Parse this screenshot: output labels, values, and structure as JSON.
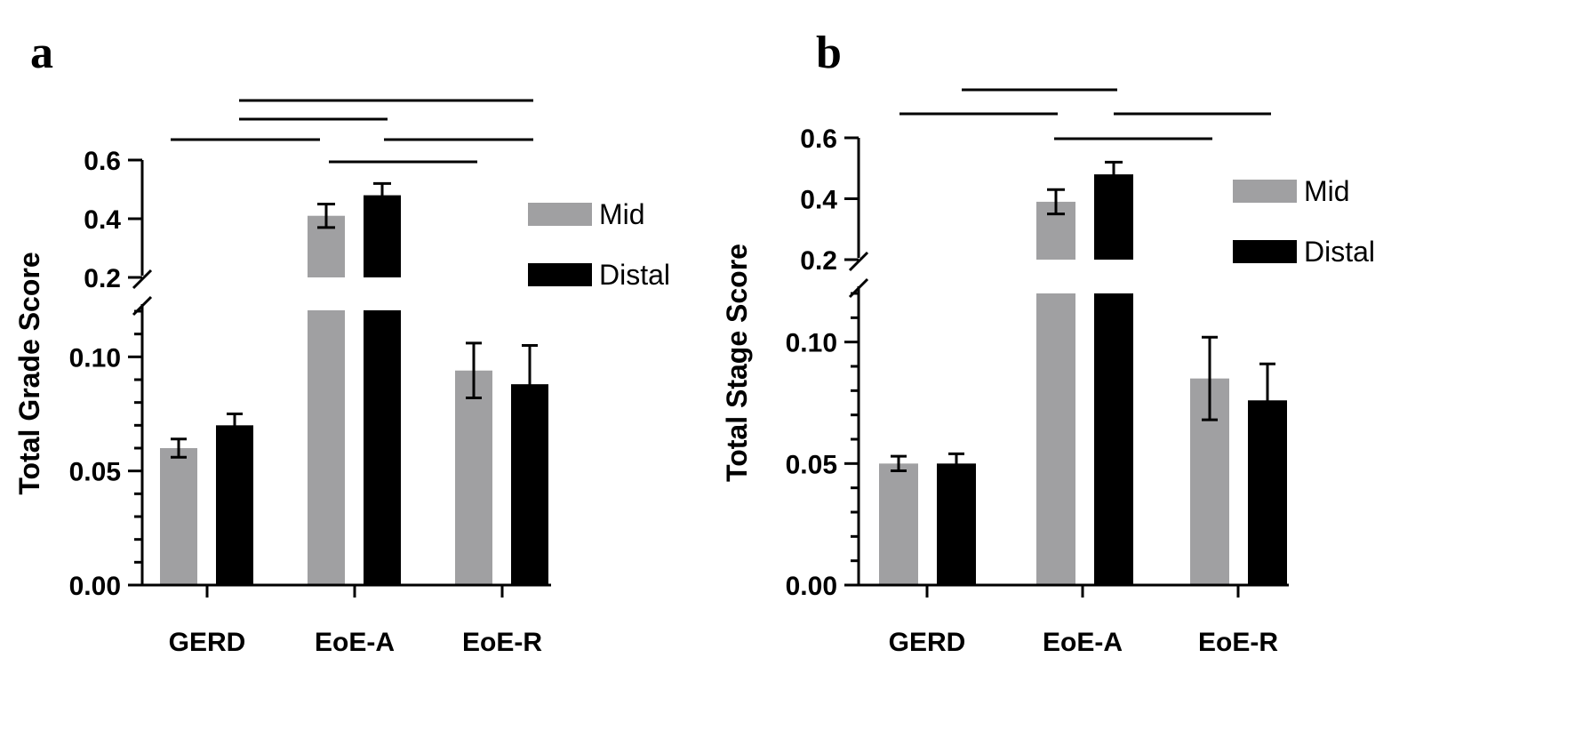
{
  "colors": {
    "mid": "#a0a0a2",
    "distal": "#000000"
  },
  "legend": [
    "Mid",
    "Distal"
  ],
  "chart_data": [
    {
      "panel": "a",
      "type": "bar",
      "ylabel": "Total Grade Score",
      "categories": [
        "GERD",
        "EoE-A",
        "EoE-R"
      ],
      "series": [
        {
          "name": "Mid",
          "values": [
            0.06,
            0.41,
            0.094
          ],
          "errors": [
            0.004,
            0.04,
            0.012
          ]
        },
        {
          "name": "Distal",
          "values": [
            0.07,
            0.48,
            0.088
          ],
          "errors": [
            0.005,
            0.04,
            0.017
          ]
        }
      ],
      "y_axis_lower": {
        "range": [
          0,
          0.12
        ],
        "ticks": [
          "0.00",
          "0.05",
          "0.10"
        ]
      },
      "y_axis_upper": {
        "range": [
          0.2,
          0.6
        ],
        "ticks": [
          "0.2",
          "0.4",
          "0.6"
        ]
      },
      "axis_break": true
    },
    {
      "panel": "b",
      "type": "bar",
      "ylabel": "Total Stage Score",
      "categories": [
        "GERD",
        "EoE-A",
        "EoE-R"
      ],
      "series": [
        {
          "name": "Mid",
          "values": [
            0.05,
            0.39,
            0.085
          ],
          "errors": [
            0.003,
            0.04,
            0.017
          ]
        },
        {
          "name": "Distal",
          "values": [
            0.05,
            0.48,
            0.076
          ],
          "errors": [
            0.004,
            0.04,
            0.015
          ]
        }
      ],
      "y_axis_lower": {
        "range": [
          0,
          0.12
        ],
        "ticks": [
          "0.00",
          "0.05",
          "0.10"
        ]
      },
      "y_axis_upper": {
        "range": [
          0.2,
          0.6
        ],
        "ticks": [
          "0.2",
          "0.4",
          "0.6"
        ]
      },
      "axis_break": true
    }
  ]
}
